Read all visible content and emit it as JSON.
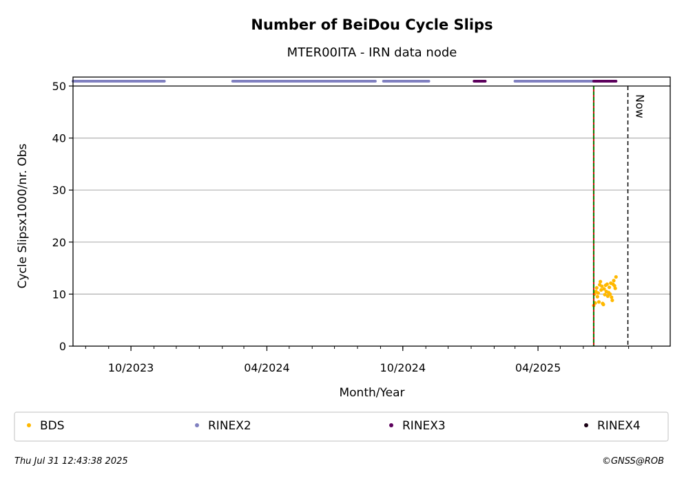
{
  "chart_data": {
    "type": "scatter",
    "title": "Number of BeiDou Cycle Slips",
    "subtitle": "MTER00ITA - IRN data node",
    "xlabel": "Month/Year",
    "ylabel": "Cycle Slipsx1000/nr. Obs",
    "ylim": [
      0,
      50
    ],
    "yticks": [
      0,
      10,
      20,
      30,
      40,
      50
    ],
    "xlim": [
      "2023-07-15",
      "2025-09-26"
    ],
    "xticks": [
      {
        "date": "2023-10-01",
        "label": "10/2023"
      },
      {
        "date": "2024-04-01",
        "label": "04/2024"
      },
      {
        "date": "2024-10-01",
        "label": "10/2024"
      },
      {
        "date": "2025-04-01",
        "label": "04/2025"
      }
    ],
    "grid": "y",
    "legend_position": "bottom",
    "now_label": "Now",
    "now_date": "2025-07-31",
    "start_line_date": "2025-06-15",
    "series": [
      {
        "name": "BDS",
        "color": "#FFB800",
        "points": [
          [
            "2025-06-15",
            7.8
          ],
          [
            "2025-06-16",
            10.0
          ],
          [
            "2025-06-17",
            8.3
          ],
          [
            "2025-06-18",
            10.5
          ],
          [
            "2025-06-19",
            11.2
          ],
          [
            "2025-06-20",
            9.5
          ],
          [
            "2025-06-21",
            10.2
          ],
          [
            "2025-06-22",
            8.5
          ],
          [
            "2025-06-23",
            11.8
          ],
          [
            "2025-06-24",
            12.4
          ],
          [
            "2025-06-25",
            10.8
          ],
          [
            "2025-06-26",
            11.5
          ],
          [
            "2025-06-27",
            8.2
          ],
          [
            "2025-06-28",
            8.0
          ],
          [
            "2025-06-29",
            11.0
          ],
          [
            "2025-06-30",
            9.9
          ],
          [
            "2025-07-01",
            11.7
          ],
          [
            "2025-07-02",
            10.5
          ],
          [
            "2025-07-03",
            11.9
          ],
          [
            "2025-07-04",
            9.6
          ],
          [
            "2025-07-05",
            10.3
          ],
          [
            "2025-07-06",
            11.3
          ],
          [
            "2025-07-07",
            10.0
          ],
          [
            "2025-07-08",
            12.1
          ],
          [
            "2025-07-09",
            9.4
          ],
          [
            "2025-07-10",
            8.8
          ],
          [
            "2025-07-11",
            11.9
          ],
          [
            "2025-07-12",
            12.6
          ],
          [
            "2025-07-13",
            11.6
          ],
          [
            "2025-07-14",
            11.1
          ],
          [
            "2025-07-15",
            13.3
          ]
        ]
      },
      {
        "name": "RINEX2",
        "color": "#8080C0",
        "segments": [
          [
            "2023-07-15",
            "2023-11-15"
          ],
          [
            "2024-02-15",
            "2024-08-25"
          ],
          [
            "2024-09-05",
            "2024-11-05"
          ],
          [
            "2025-03-01",
            "2025-06-14"
          ]
        ]
      },
      {
        "name": "RINEX3",
        "color": "#5C005C",
        "segments": [
          [
            "2025-01-05",
            "2025-01-20"
          ],
          [
            "2025-06-15",
            "2025-07-15"
          ]
        ]
      },
      {
        "name": "RINEX4",
        "color": "#1A0014",
        "segments": []
      }
    ]
  },
  "footer": {
    "timestamp": "Thu Jul 31 12:43:38 2025",
    "copyright": "©GNSS@ROB"
  }
}
